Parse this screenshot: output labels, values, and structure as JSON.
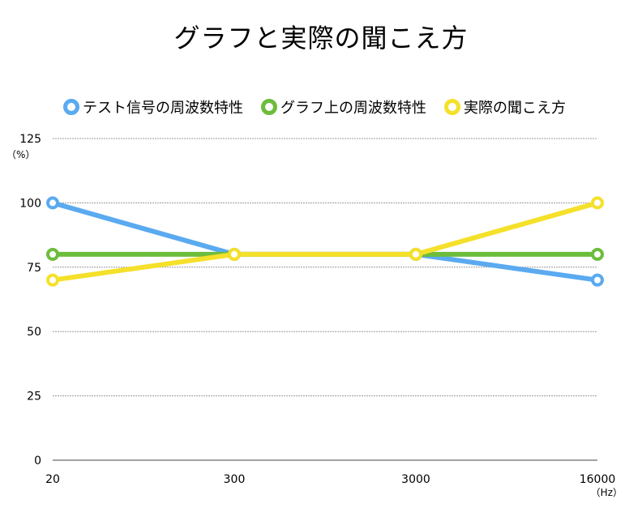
{
  "chart_data": {
    "type": "line",
    "title": "グラフと実際の聞こえ方",
    "categories": [
      "20",
      "300",
      "3000",
      "16000"
    ],
    "x_unit": "（Hz）",
    "y_unit": "（%）",
    "ylim": [
      0,
      125
    ],
    "yticks": [
      0,
      25,
      50,
      75,
      100,
      125
    ],
    "grid": true,
    "legend_position": "top",
    "series": [
      {
        "name": "テスト信号の周波数特性",
        "color": "#5aaaf0",
        "values": [
          100,
          80,
          80,
          70
        ]
      },
      {
        "name": "グラフ上の周波数特性",
        "color": "#6cbd3c",
        "values": [
          80,
          80,
          80,
          80
        ]
      },
      {
        "name": "実際の聞こえ方",
        "color": "#f5e02a",
        "values": [
          70,
          80,
          80,
          100
        ]
      }
    ]
  }
}
